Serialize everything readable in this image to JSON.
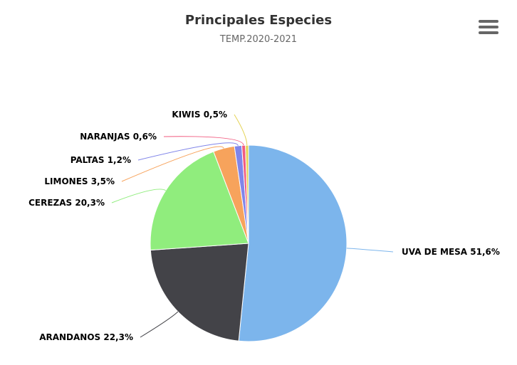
{
  "header": {
    "title": "Principales Especies",
    "subtitle": "TEMP.2020-2021"
  },
  "menu": {
    "icon": "hamburger-menu-icon"
  },
  "chart_data": {
    "type": "pie",
    "title": "Principales Especies",
    "subtitle": "TEMP.2020-2021",
    "slices": [
      {
        "name": "UVA DE MESA",
        "value": 51.6,
        "label": "UVA DE MESA 51,6%",
        "color": "#7cb5ec"
      },
      {
        "name": "ARANDANOS",
        "value": 22.3,
        "label": "ARANDANOS 22,3%",
        "color": "#434348"
      },
      {
        "name": "CEREZAS",
        "value": 20.3,
        "label": "CEREZAS 20,3%",
        "color": "#90ed7d"
      },
      {
        "name": "LIMONES",
        "value": 3.5,
        "label": "LIMONES 3,5%",
        "color": "#f7a35c"
      },
      {
        "name": "PALTAS",
        "value": 1.2,
        "label": "PALTAS 1,2%",
        "color": "#8085e9"
      },
      {
        "name": "NARANJAS",
        "value": 0.6,
        "label": "NARANJAS 0,6%",
        "color": "#f15c80"
      },
      {
        "name": "KIWIS",
        "value": 0.5,
        "label": "KIWIS 0,5%",
        "color": "#e4d354"
      }
    ]
  }
}
